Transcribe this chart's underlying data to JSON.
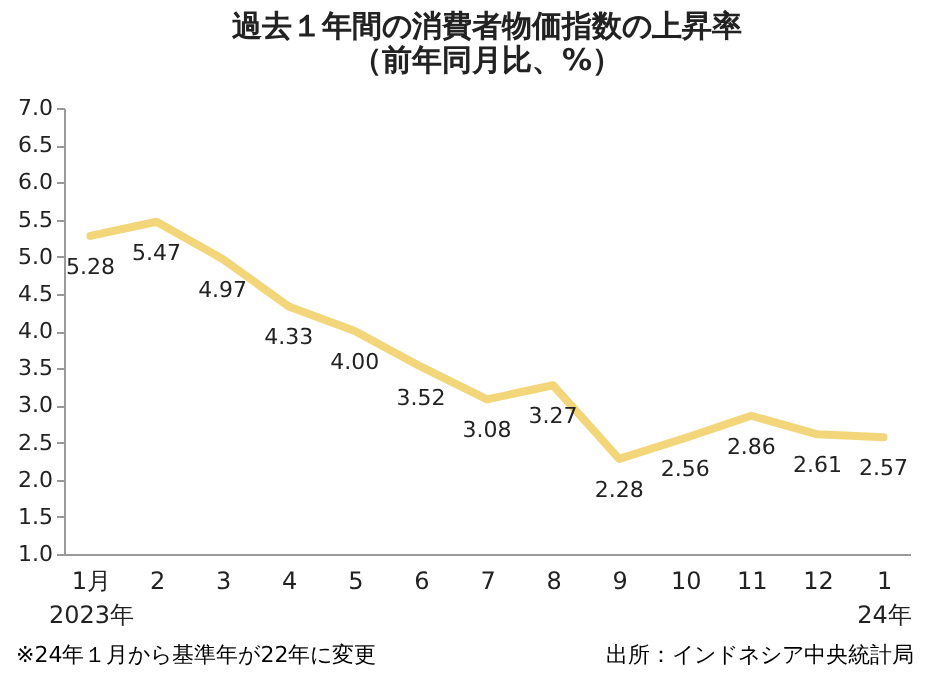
{
  "chart_data": {
    "type": "line",
    "title": "過去１年間の消費者物価指数の上昇率",
    "subtitle": "（前年同月比、%）",
    "categories": [
      "1月\n2023年",
      "2",
      "3",
      "4",
      "5",
      "6",
      "7",
      "8",
      "9",
      "10",
      "11",
      "12",
      "1\n24年"
    ],
    "series": [
      {
        "color": "#f3d57a",
        "values": [
          5.28,
          5.47,
          4.97,
          4.33,
          4.0,
          3.52,
          3.08,
          3.27,
          2.28,
          2.56,
          2.86,
          2.61,
          2.57
        ]
      }
    ],
    "value_labels": [
      "5.28",
      "5.47",
      "4.97",
      "4.33",
      "4.00",
      "3.52",
      "3.08",
      "3.27",
      "2.28",
      "2.56",
      "2.86",
      "2.61",
      "2.57"
    ],
    "ylim": [
      1.0,
      7.0
    ],
    "yticks": [
      {
        "value": 1,
        "label": "1.0"
      },
      {
        "value": 1.5,
        "label": "1.5"
      },
      {
        "value": 2,
        "label": "2.0"
      },
      {
        "value": 2.5,
        "label": "2.5"
      },
      {
        "value": 3,
        "label": "3.0"
      },
      {
        "value": 3.5,
        "label": "3.5"
      },
      {
        "value": 4,
        "label": "4.0"
      },
      {
        "value": 4.5,
        "label": "4.5"
      },
      {
        "value": 5,
        "label": "5.0"
      },
      {
        "value": 5.5,
        "label": "5.5"
      },
      {
        "value": 6,
        "label": "6.0"
      },
      {
        "value": 6.5,
        "label": "6.5"
      },
      {
        "value": 7,
        "label": "7.0"
      }
    ],
    "annotations": [
      "※24年１月から基準年が22年に変更",
      "出所：インドネシア中央統計局"
    ]
  }
}
